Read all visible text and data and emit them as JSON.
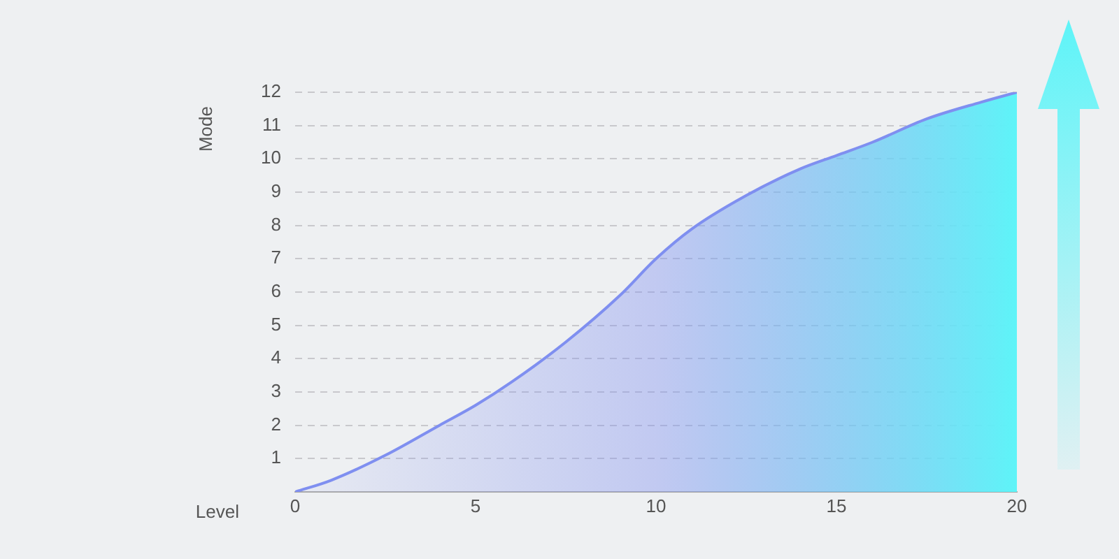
{
  "chart_data": {
    "type": "area",
    "xlabel": "Level",
    "ylabel": "Mode",
    "x": [
      0,
      1,
      2.5,
      4,
      5,
      6,
      7.5,
      9,
      10,
      11,
      12.5,
      14,
      15,
      16,
      17.5,
      19,
      20
    ],
    "series": [
      {
        "color": "#7f8ff0",
        "values": [
          0,
          0.35,
          1.1,
          2,
          2.6,
          3.3,
          4.5,
          5.9,
          7,
          7.9,
          8.9,
          9.7,
          10.1,
          10.5,
          11.2,
          11.7,
          12
        ]
      }
    ],
    "xlim": [
      0,
      20
    ],
    "xticks": [
      0,
      5,
      10,
      15,
      20
    ],
    "ylim": [
      0,
      12
    ],
    "yticks": [
      1,
      2,
      3,
      4,
      5,
      6,
      7,
      8,
      9,
      10,
      11,
      12
    ],
    "grid": "y",
    "line_style": "solid",
    "marker": "none",
    "legend": false
  }
}
